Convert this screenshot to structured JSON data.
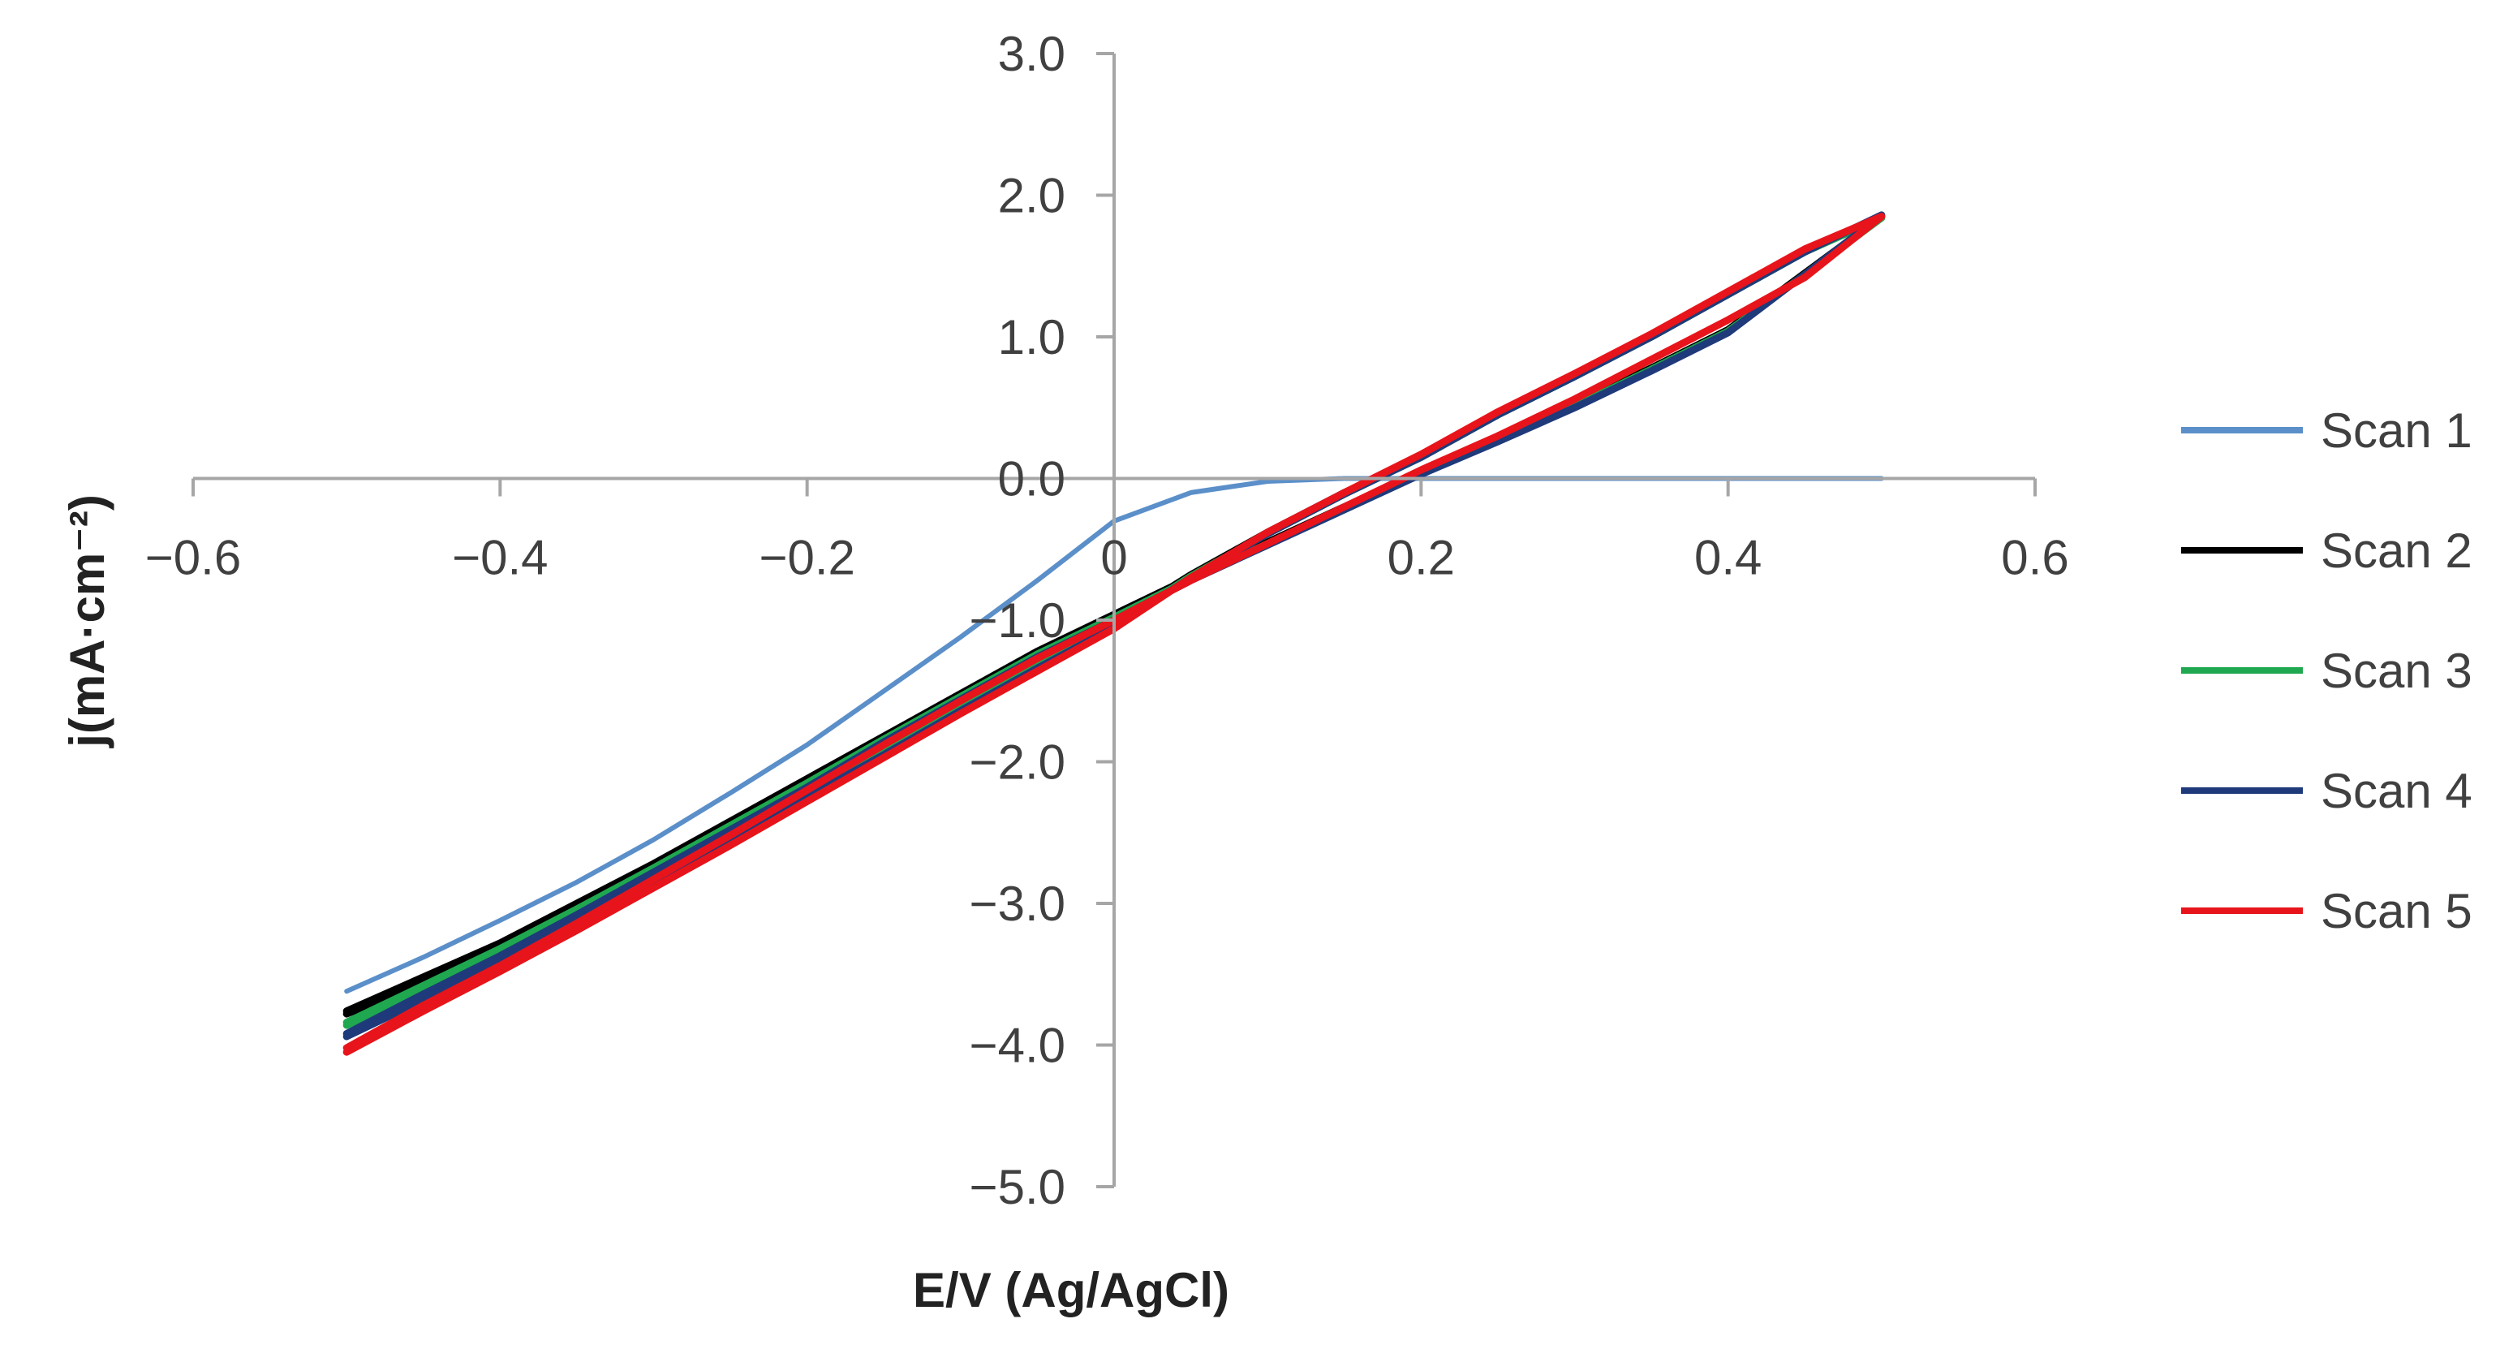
{
  "chart_data": {
    "type": "line",
    "title": "",
    "xlabel": "E/V (Ag/AgCl)",
    "ylabel": "j(mA·cm⁻²)",
    "xlim": [
      -0.6,
      0.6
    ],
    "ylim": [
      -5.0,
      3.0
    ],
    "xticks": [
      -0.6,
      -0.4,
      -0.2,
      0,
      0.2,
      0.4,
      0.6
    ],
    "xtick_labels": [
      "−0.6",
      "−0.4",
      "−0.2",
      "0",
      "0.2",
      "0.4",
      "0.6"
    ],
    "yticks": [
      3.0,
      2.0,
      1.0,
      0.0,
      -1.0,
      -2.0,
      -3.0,
      -4.0,
      -5.0
    ],
    "ytick_labels": [
      "3.0",
      "2.0",
      "1.0",
      "0.0",
      "−1.0",
      "−2.0",
      "−3.0",
      "−4.0",
      "−5.0"
    ],
    "grid": false,
    "legend_position": "right",
    "series": [
      {
        "name": "Scan 1",
        "color": "#5b8fc9",
        "points": [
          [
            -0.5,
            -3.62
          ],
          [
            -0.45,
            -3.38
          ],
          [
            -0.4,
            -3.12
          ],
          [
            -0.35,
            -2.85
          ],
          [
            -0.3,
            -2.55
          ],
          [
            -0.25,
            -2.22
          ],
          [
            -0.2,
            -1.88
          ],
          [
            -0.15,
            -1.5
          ],
          [
            -0.1,
            -1.12
          ],
          [
            -0.05,
            -0.72
          ],
          [
            0.0,
            -0.3
          ],
          [
            0.05,
            -0.1
          ],
          [
            0.1,
            -0.02
          ],
          [
            0.15,
            0.0
          ],
          [
            0.2,
            0.0
          ],
          [
            0.3,
            0.0
          ],
          [
            0.4,
            0.0
          ],
          [
            0.5,
            0.0
          ]
        ]
      },
      {
        "name": "Scan 2",
        "color": "#000000",
        "points": [
          [
            -0.5,
            -3.76
          ],
          [
            -0.45,
            -3.52
          ],
          [
            -0.4,
            -3.28
          ],
          [
            -0.35,
            -3.0
          ],
          [
            -0.3,
            -2.72
          ],
          [
            -0.25,
            -2.42
          ],
          [
            -0.2,
            -2.12
          ],
          [
            -0.15,
            -1.82
          ],
          [
            -0.1,
            -1.52
          ],
          [
            -0.05,
            -1.22
          ],
          [
            0.0,
            -0.96
          ],
          [
            0.05,
            -0.7
          ],
          [
            0.1,
            -0.45
          ],
          [
            0.15,
            -0.2
          ],
          [
            0.2,
            0.05
          ],
          [
            0.25,
            0.28
          ],
          [
            0.3,
            0.52
          ],
          [
            0.35,
            0.78
          ],
          [
            0.4,
            1.05
          ],
          [
            0.45,
            1.45
          ],
          [
            0.5,
            1.85
          ],
          [
            0.45,
            1.6
          ],
          [
            0.4,
            1.3
          ],
          [
            0.35,
            1.0
          ],
          [
            0.3,
            0.72
          ],
          [
            0.25,
            0.45
          ],
          [
            0.2,
            0.15
          ],
          [
            0.15,
            -0.1
          ],
          [
            0.1,
            -0.38
          ],
          [
            0.05,
            -0.68
          ],
          [
            0.0,
            -1.02
          ],
          [
            -0.05,
            -1.3
          ],
          [
            -0.1,
            -1.6
          ],
          [
            -0.15,
            -1.9
          ],
          [
            -0.2,
            -2.2
          ],
          [
            -0.25,
            -2.5
          ],
          [
            -0.3,
            -2.78
          ],
          [
            -0.35,
            -3.06
          ],
          [
            -0.4,
            -3.33
          ],
          [
            -0.45,
            -3.57
          ],
          [
            -0.5,
            -3.78
          ]
        ]
      },
      {
        "name": "Scan 3",
        "color": "#1fa84f",
        "points": [
          [
            -0.5,
            -3.84
          ],
          [
            -0.45,
            -3.58
          ],
          [
            -0.4,
            -3.32
          ],
          [
            -0.35,
            -3.04
          ],
          [
            -0.3,
            -2.75
          ],
          [
            -0.25,
            -2.45
          ],
          [
            -0.2,
            -2.15
          ],
          [
            -0.15,
            -1.84
          ],
          [
            -0.1,
            -1.54
          ],
          [
            -0.05,
            -1.24
          ],
          [
            0.0,
            -0.98
          ],
          [
            0.05,
            -0.71
          ],
          [
            0.1,
            -0.46
          ],
          [
            0.15,
            -0.21
          ],
          [
            0.2,
            0.04
          ],
          [
            0.25,
            0.27
          ],
          [
            0.3,
            0.51
          ],
          [
            0.35,
            0.77
          ],
          [
            0.4,
            1.04
          ],
          [
            0.45,
            1.44
          ],
          [
            0.5,
            1.84
          ],
          [
            0.45,
            1.6
          ],
          [
            0.4,
            1.3
          ],
          [
            0.35,
            1.0
          ],
          [
            0.3,
            0.72
          ],
          [
            0.25,
            0.45
          ],
          [
            0.2,
            0.15
          ],
          [
            0.15,
            -0.11
          ],
          [
            0.1,
            -0.39
          ],
          [
            0.05,
            -0.69
          ],
          [
            0.0,
            -1.04
          ],
          [
            -0.05,
            -1.32
          ],
          [
            -0.1,
            -1.62
          ],
          [
            -0.15,
            -1.92
          ],
          [
            -0.2,
            -2.22
          ],
          [
            -0.25,
            -2.52
          ],
          [
            -0.3,
            -2.8
          ],
          [
            -0.35,
            -3.09
          ],
          [
            -0.4,
            -3.36
          ],
          [
            -0.45,
            -3.62
          ],
          [
            -0.5,
            -3.86
          ]
        ]
      },
      {
        "name": "Scan 4",
        "color": "#1f3a7a",
        "points": [
          [
            -0.5,
            -3.92
          ],
          [
            -0.45,
            -3.64
          ],
          [
            -0.4,
            -3.37
          ],
          [
            -0.35,
            -3.08
          ],
          [
            -0.3,
            -2.78
          ],
          [
            -0.25,
            -2.48
          ],
          [
            -0.2,
            -2.18
          ],
          [
            -0.15,
            -1.86
          ],
          [
            -0.1,
            -1.56
          ],
          [
            -0.05,
            -1.26
          ],
          [
            0.0,
            -1.0
          ],
          [
            0.05,
            -0.72
          ],
          [
            0.1,
            -0.47
          ],
          [
            0.15,
            -0.22
          ],
          [
            0.2,
            0.03
          ],
          [
            0.25,
            0.26
          ],
          [
            0.3,
            0.5
          ],
          [
            0.35,
            0.76
          ],
          [
            0.4,
            1.03
          ],
          [
            0.45,
            1.44
          ],
          [
            0.5,
            1.86
          ],
          [
            0.45,
            1.6
          ],
          [
            0.4,
            1.3
          ],
          [
            0.35,
            1.0
          ],
          [
            0.3,
            0.72
          ],
          [
            0.25,
            0.45
          ],
          [
            0.2,
            0.15
          ],
          [
            0.15,
            -0.11
          ],
          [
            0.1,
            -0.39
          ],
          [
            0.05,
            -0.7
          ],
          [
            0.0,
            -1.05
          ],
          [
            -0.05,
            -1.34
          ],
          [
            -0.1,
            -1.64
          ],
          [
            -0.15,
            -1.95
          ],
          [
            -0.2,
            -2.25
          ],
          [
            -0.25,
            -2.55
          ],
          [
            -0.3,
            -2.84
          ],
          [
            -0.35,
            -3.13
          ],
          [
            -0.4,
            -3.41
          ],
          [
            -0.45,
            -3.68
          ],
          [
            -0.5,
            -3.94
          ]
        ]
      },
      {
        "name": "Scan 5",
        "color": "#e8141b",
        "points": [
          [
            -0.5,
            -4.02
          ],
          [
            -0.45,
            -3.72
          ],
          [
            -0.4,
            -3.44
          ],
          [
            -0.35,
            -3.14
          ],
          [
            -0.3,
            -2.83
          ],
          [
            -0.25,
            -2.52
          ],
          [
            -0.2,
            -2.2
          ],
          [
            -0.15,
            -1.88
          ],
          [
            -0.1,
            -1.57
          ],
          [
            -0.05,
            -1.27
          ],
          [
            0.0,
            -1.0
          ],
          [
            0.05,
            -0.72
          ],
          [
            0.1,
            -0.46
          ],
          [
            0.15,
            -0.2
          ],
          [
            0.2,
            0.06
          ],
          [
            0.25,
            0.3
          ],
          [
            0.3,
            0.56
          ],
          [
            0.35,
            0.84
          ],
          [
            0.4,
            1.12
          ],
          [
            0.45,
            1.42
          ],
          [
            0.5,
            1.85
          ],
          [
            0.45,
            1.62
          ],
          [
            0.4,
            1.32
          ],
          [
            0.35,
            1.02
          ],
          [
            0.3,
            0.74
          ],
          [
            0.25,
            0.47
          ],
          [
            0.2,
            0.17
          ],
          [
            0.15,
            -0.1
          ],
          [
            0.1,
            -0.38
          ],
          [
            0.05,
            -0.7
          ],
          [
            0.0,
            -1.06
          ],
          [
            -0.05,
            -1.36
          ],
          [
            -0.1,
            -1.66
          ],
          [
            -0.15,
            -1.97
          ],
          [
            -0.2,
            -2.28
          ],
          [
            -0.25,
            -2.59
          ],
          [
            -0.3,
            -2.89
          ],
          [
            -0.35,
            -3.19
          ],
          [
            -0.4,
            -3.48
          ],
          [
            -0.45,
            -3.76
          ],
          [
            -0.5,
            -4.05
          ]
        ]
      }
    ]
  }
}
